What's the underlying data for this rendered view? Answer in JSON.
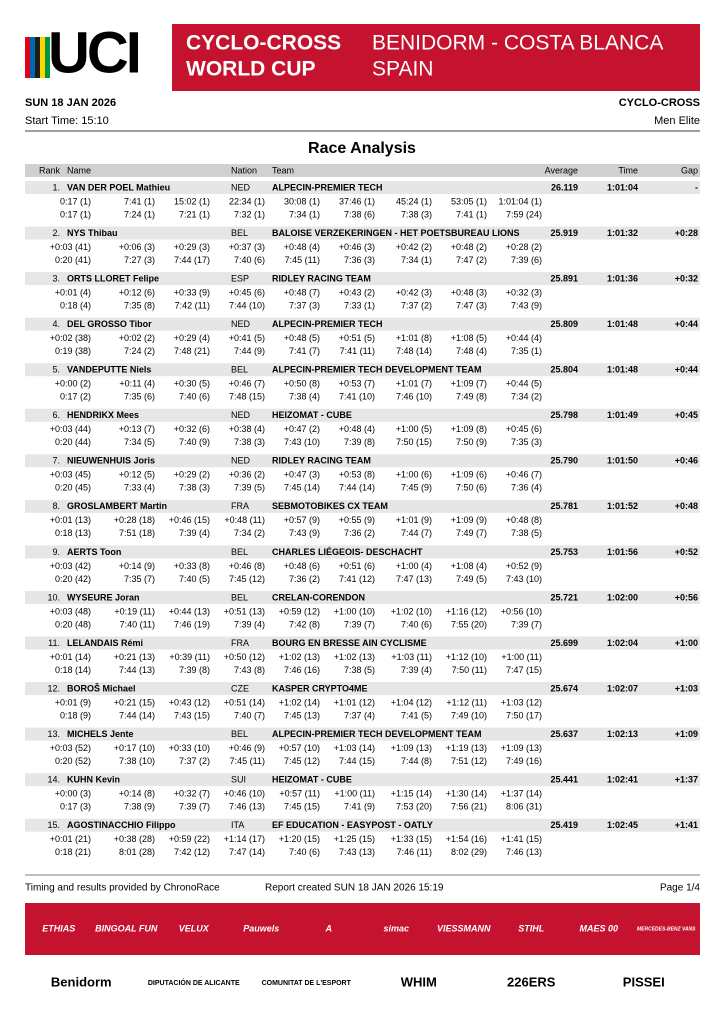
{
  "header": {
    "logo": "UCI",
    "banner_left": [
      "CYCLO-CROSS",
      "WORLD CUP"
    ],
    "banner_right": [
      "BENIDORM - COSTA BLANCA",
      "SPAIN"
    ],
    "date": "SUN 18 JAN 2026",
    "discipline": "CYCLO-CROSS",
    "start_time": "Start Time: 15:10",
    "category": "Men Elite",
    "title": "Race Analysis"
  },
  "table": {
    "columns": [
      "Rank",
      "Name",
      "Nation",
      "Team",
      "Average",
      "Time",
      "Gap"
    ],
    "rows": [
      {
        "rank": "1.",
        "name": "VAN DER POEL Mathieu",
        "nation": "NED",
        "team": "ALPECIN-PREMIER TECH",
        "average": "26.119",
        "time": "1:01:04",
        "gap": "-",
        "gaps": [
          "0:17 (1)",
          "7:41 (1)",
          "15:02 (1)",
          "22:34 (1)",
          "30:08 (1)",
          "37:46 (1)",
          "45:24 (1)",
          "53:05 (1)",
          "1:01:04 (1)"
        ],
        "laps": [
          "0:17 (1)",
          "7:24 (1)",
          "7:21 (1)",
          "7:32 (1)",
          "7:34 (1)",
          "7:38 (6)",
          "7:38 (3)",
          "7:41 (1)",
          "7:59 (24)"
        ]
      },
      {
        "rank": "2.",
        "name": "NYS Thibau",
        "nation": "BEL",
        "team": "BALOISE VERZEKERINGEN - HET POETSBUREAU LIONS",
        "average": "25.919",
        "time": "1:01:32",
        "gap": "+0:28",
        "gaps": [
          "+0:03 (41)",
          "+0:06 (3)",
          "+0:29 (3)",
          "+0:37 (3)",
          "+0:48 (4)",
          "+0:46 (3)",
          "+0:42 (2)",
          "+0:48 (2)",
          "+0:28 (2)"
        ],
        "laps": [
          "0:20 (41)",
          "7:27 (3)",
          "7:44 (17)",
          "7:40 (6)",
          "7:45 (11)",
          "7:36 (3)",
          "7:34 (1)",
          "7:47 (2)",
          "7:39 (6)"
        ]
      },
      {
        "rank": "3.",
        "name": "ORTS LLORET Felipe",
        "nation": "ESP",
        "team": "RIDLEY RACING TEAM",
        "average": "25.891",
        "time": "1:01:36",
        "gap": "+0:32",
        "gaps": [
          "+0:01 (4)",
          "+0:12 (6)",
          "+0:33 (9)",
          "+0:45 (6)",
          "+0:48 (7)",
          "+0:43 (2)",
          "+0:42 (3)",
          "+0:48 (3)",
          "+0:32 (3)"
        ],
        "laps": [
          "0:18 (4)",
          "7:35 (8)",
          "7:42 (11)",
          "7:44 (10)",
          "7:37 (3)",
          "7:33 (1)",
          "7:37 (2)",
          "7:47 (3)",
          "7:43 (9)"
        ]
      },
      {
        "rank": "4.",
        "name": "DEL GROSSO Tibor",
        "nation": "NED",
        "team": "ALPECIN-PREMIER TECH",
        "average": "25.809",
        "time": "1:01:48",
        "gap": "+0:44",
        "gaps": [
          "+0:02 (38)",
          "+0:02 (2)",
          "+0:29 (4)",
          "+0:41 (5)",
          "+0:48 (5)",
          "+0:51 (5)",
          "+1:01 (8)",
          "+1:08 (5)",
          "+0:44 (4)"
        ],
        "laps": [
          "0:19 (38)",
          "7:24 (2)",
          "7:48 (21)",
          "7:44 (9)",
          "7:41 (7)",
          "7:41 (11)",
          "7:48 (14)",
          "7:48 (4)",
          "7:35 (1)"
        ]
      },
      {
        "rank": "5.",
        "name": "VANDEPUTTE Niels",
        "nation": "BEL",
        "team": "ALPECIN-PREMIER TECH DEVELOPMENT TEAM",
        "average": "25.804",
        "time": "1:01:48",
        "gap": "+0:44",
        "gaps": [
          "+0:00 (2)",
          "+0:11 (4)",
          "+0:30 (5)",
          "+0:46 (7)",
          "+0:50 (8)",
          "+0:53 (7)",
          "+1:01 (7)",
          "+1:09 (7)",
          "+0:44 (5)"
        ],
        "laps": [
          "0:17 (2)",
          "7:35 (6)",
          "7:40 (6)",
          "7:48 (15)",
          "7:38 (4)",
          "7:41 (10)",
          "7:46 (10)",
          "7:49 (8)",
          "7:34 (2)"
        ]
      },
      {
        "rank": "6.",
        "name": "HENDRIKX Mees",
        "nation": "NED",
        "team": "HEIZOMAT - CUBE",
        "average": "25.798",
        "time": "1:01:49",
        "gap": "+0:45",
        "gaps": [
          "+0:03 (44)",
          "+0:13 (7)",
          "+0:32 (6)",
          "+0:38 (4)",
          "+0:47 (2)",
          "+0:48 (4)",
          "+1:00 (5)",
          "+1:09 (8)",
          "+0:45 (6)"
        ],
        "laps": [
          "0:20 (44)",
          "7:34 (5)",
          "7:40 (9)",
          "7:38 (3)",
          "7:43 (10)",
          "7:39 (8)",
          "7:50 (15)",
          "7:50 (9)",
          "7:35 (3)"
        ]
      },
      {
        "rank": "7.",
        "name": "NIEUWENHUIS Joris",
        "nation": "NED",
        "team": "RIDLEY RACING TEAM",
        "average": "25.790",
        "time": "1:01:50",
        "gap": "+0:46",
        "gaps": [
          "+0:03 (45)",
          "+0:12 (5)",
          "+0:29 (2)",
          "+0:36 (2)",
          "+0:47 (3)",
          "+0:53 (8)",
          "+1:00 (6)",
          "+1:09 (6)",
          "+0:46 (7)"
        ],
        "laps": [
          "0:20 (45)",
          "7:33 (4)",
          "7:38 (3)",
          "7:39 (5)",
          "7:45 (14)",
          "7:44 (14)",
          "7:45 (9)",
          "7:50 (6)",
          "7:36 (4)"
        ]
      },
      {
        "rank": "8.",
        "name": "GROSLAMBERT Martin",
        "nation": "FRA",
        "team": "SEBMOTOBIKES CX TEAM",
        "average": "25.781",
        "time": "1:01:52",
        "gap": "+0:48",
        "gaps": [
          "+0:01 (13)",
          "+0:28 (18)",
          "+0:46 (15)",
          "+0:48 (11)",
          "+0:57 (9)",
          "+0:55 (9)",
          "+1:01 (9)",
          "+1:09 (9)",
          "+0:48 (8)"
        ],
        "laps": [
          "0:18 (13)",
          "7:51 (18)",
          "7:39 (4)",
          "7:34 (2)",
          "7:43 (9)",
          "7:36 (2)",
          "7:44 (7)",
          "7:49 (7)",
          "7:38 (5)"
        ]
      },
      {
        "rank": "9.",
        "name": "AERTS Toon",
        "nation": "BEL",
        "team": "CHARLES LIÉGEOIS- DESCHACHT",
        "average": "25.753",
        "time": "1:01:56",
        "gap": "+0:52",
        "gaps": [
          "+0:03 (42)",
          "+0:14 (9)",
          "+0:33 (8)",
          "+0:46 (8)",
          "+0:48 (6)",
          "+0:51 (6)",
          "+1:00 (4)",
          "+1:08 (4)",
          "+0:52 (9)"
        ],
        "laps": [
          "0:20 (42)",
          "7:35 (7)",
          "7:40 (5)",
          "7:45 (12)",
          "7:36 (2)",
          "7:41 (12)",
          "7:47 (13)",
          "7:49 (5)",
          "7:43 (10)"
        ]
      },
      {
        "rank": "10.",
        "name": "WYSEURE Joran",
        "nation": "BEL",
        "team": "CRELAN-CORENDON",
        "average": "25.721",
        "time": "1:02:00",
        "gap": "+0:56",
        "gaps": [
          "+0:03 (48)",
          "+0:19 (11)",
          "+0:44 (13)",
          "+0:51 (13)",
          "+0:59 (12)",
          "+1:00 (10)",
          "+1:02 (10)",
          "+1:16 (12)",
          "+0:56 (10)"
        ],
        "laps": [
          "0:20 (48)",
          "7:40 (11)",
          "7:46 (19)",
          "7:39 (4)",
          "7:42 (8)",
          "7:39 (7)",
          "7:40 (6)",
          "7:55 (20)",
          "7:39 (7)"
        ]
      },
      {
        "rank": "11.",
        "name": "LELANDAIS Rémi",
        "nation": "FRA",
        "team": "BOURG EN BRESSE AIN CYCLISME",
        "average": "25.699",
        "time": "1:02:04",
        "gap": "+1:00",
        "gaps": [
          "+0:01 (14)",
          "+0:21 (13)",
          "+0:39 (11)",
          "+0:50 (12)",
          "+1:02 (13)",
          "+1:02 (13)",
          "+1:03 (11)",
          "+1:12 (10)",
          "+1:00 (11)"
        ],
        "laps": [
          "0:18 (14)",
          "7:44 (13)",
          "7:39 (8)",
          "7:43 (8)",
          "7:46 (16)",
          "7:38 (5)",
          "7:39 (4)",
          "7:50 (11)",
          "7:47 (15)"
        ]
      },
      {
        "rank": "12.",
        "name": "BOROŠ Michael",
        "nation": "CZE",
        "team": "KASPER CRYPTO4ME",
        "average": "25.674",
        "time": "1:02:07",
        "gap": "+1:03",
        "gaps": [
          "+0:01 (9)",
          "+0:21 (15)",
          "+0:43 (12)",
          "+0:51 (14)",
          "+1:02 (14)",
          "+1:01 (12)",
          "+1:04 (12)",
          "+1:12 (11)",
          "+1:03 (12)"
        ],
        "laps": [
          "0:18 (9)",
          "7:44 (14)",
          "7:43 (15)",
          "7:40 (7)",
          "7:45 (13)",
          "7:37 (4)",
          "7:41 (5)",
          "7:49 (10)",
          "7:50 (17)"
        ]
      },
      {
        "rank": "13.",
        "name": "MICHELS Jente",
        "nation": "BEL",
        "team": "ALPECIN-PREMIER TECH DEVELOPMENT TEAM",
        "average": "25.637",
        "time": "1:02:13",
        "gap": "+1:09",
        "gaps": [
          "+0:03 (52)",
          "+0:17 (10)",
          "+0:33 (10)",
          "+0:46 (9)",
          "+0:57 (10)",
          "+1:03 (14)",
          "+1:09 (13)",
          "+1:19 (13)",
          "+1:09 (13)"
        ],
        "laps": [
          "0:20 (52)",
          "7:38 (10)",
          "7:37 (2)",
          "7:45 (11)",
          "7:45 (12)",
          "7:44 (15)",
          "7:44 (8)",
          "7:51 (12)",
          "7:49 (16)"
        ]
      },
      {
        "rank": "14.",
        "name": "KUHN Kevin",
        "nation": "SUI",
        "team": "HEIZOMAT - CUBE",
        "average": "25.441",
        "time": "1:02:41",
        "gap": "+1:37",
        "gaps": [
          "+0:00 (3)",
          "+0:14 (8)",
          "+0:32 (7)",
          "+0:46 (10)",
          "+0:57 (11)",
          "+1:00 (11)",
          "+1:15 (14)",
          "+1:30 (14)",
          "+1:37 (14)"
        ],
        "laps": [
          "0:17 (3)",
          "7:38 (9)",
          "7:39 (7)",
          "7:46 (13)",
          "7:45 (15)",
          "7:41 (9)",
          "7:53 (20)",
          "7:56 (21)",
          "8:06 (31)"
        ]
      },
      {
        "rank": "15.",
        "name": "AGOSTINACCHIO Filippo",
        "nation": "ITA",
        "team": "EF EDUCATION - EASYPOST - OATLY",
        "average": "25.419",
        "time": "1:02:45",
        "gap": "+1:41",
        "gaps": [
          "+0:01 (21)",
          "+0:38 (28)",
          "+0:59 (22)",
          "+1:14 (17)",
          "+1:20 (15)",
          "+1:25 (15)",
          "+1:33 (15)",
          "+1:54 (16)",
          "+1:41 (15)"
        ],
        "laps": [
          "0:18 (21)",
          "8:01 (28)",
          "7:42 (12)",
          "7:47 (14)",
          "7:40 (6)",
          "7:43 (13)",
          "7:46 (11)",
          "8:02 (29)",
          "7:46 (13)"
        ]
      }
    ]
  },
  "footer": {
    "provider": "Timing and results provided by ChronoRace",
    "created": "Report created SUN 18 JAN 2026 15:19",
    "page": "Page 1/4"
  },
  "sponsors": {
    "band": [
      "ETHIAS",
      "BINGOAL FUN",
      "VELUX",
      "Pauwels",
      "A",
      "simac",
      "VIESSMANN",
      "STIHL",
      "MAES 00",
      "MERCEDES-BENZ VANS"
    ],
    "partners": [
      "Benidorm",
      "DIPUTACIÓN DE ALICANTE",
      "COMUNITAT DE L'ESPORT",
      "WHIM",
      "226ERS",
      "PISSEI"
    ]
  }
}
